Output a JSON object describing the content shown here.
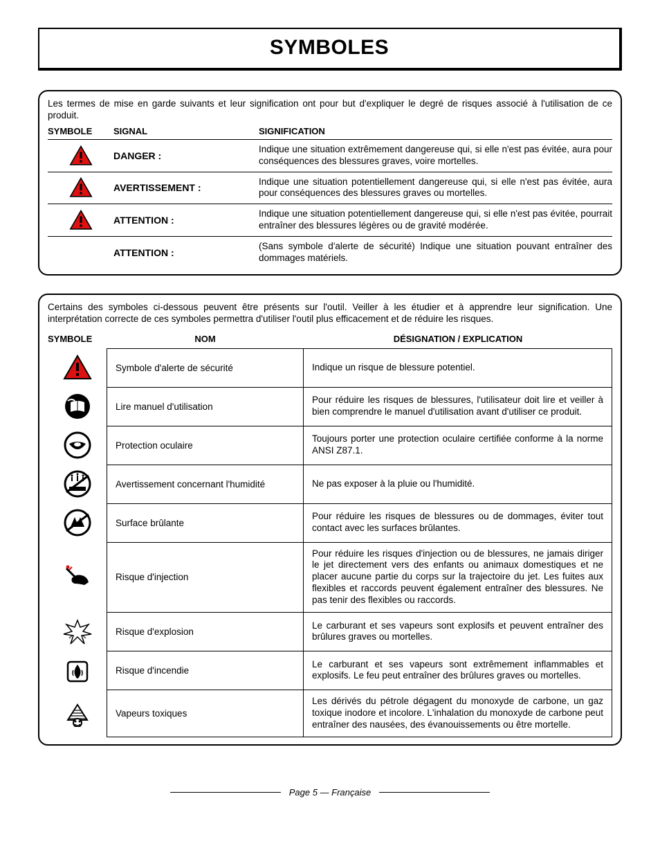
{
  "page_title": "SYMBOLES",
  "signal_intro": "Les termes de mise en garde suivants et leur signification ont pour but d'expliquer le degré de risques associé à l'utilisation de ce produit.",
  "signal_headers": {
    "c1": "SYMBOLE",
    "c2": "SIGNAL",
    "c3": "SIGNIFICATION"
  },
  "signals": [
    {
      "has_icon": true,
      "signal": "DANGER :",
      "meaning": "Indique une situation extrêmement dangereuse qui, si elle n'est pas évitée, aura pour conséquences des blessures graves, voire mortelles."
    },
    {
      "has_icon": true,
      "signal": "AVERTISSEMENT :",
      "meaning": "Indique une situation potentiellement dangereuse qui, si elle n'est pas évitée, aura pour conséquences des blessures graves ou mortelles."
    },
    {
      "has_icon": true,
      "signal": "ATTENTION :",
      "meaning": "Indique une situation potentiellement dangereuse qui, si elle n'est pas évitée, pourrait entraîner des blessures légères ou de gravité modérée."
    },
    {
      "has_icon": false,
      "signal": "ATTENTION :",
      "meaning": "(Sans symbole d'alerte de sécurité) Indique une situation pouvant entraîner des dommages matériels."
    }
  ],
  "symbols_intro": "Certains des symboles ci-dessous peuvent être présents sur l'outil. Veiller à les étudier et à apprendre leur signification. Une interprétation correcte de ces symboles permettra d'utiliser l'outil plus efficacement et de réduire les risques.",
  "symbol_headers": {
    "s1": "SYMBOLE",
    "s2": "NOM",
    "s3": "DÉSIGNATION / EXPLICATION"
  },
  "symbols": [
    {
      "icon": "alert-triangle",
      "name": "Symbole d'alerte de sécurité",
      "desc": "Indique un risque de blessure potentiel."
    },
    {
      "icon": "read-manual",
      "name": "Lire manuel d'utilisation",
      "desc": "Pour réduire les risques de blessures, l'utilisateur doit lire et veiller à bien comprendre le manuel d'utilisation avant d'utiliser ce produit."
    },
    {
      "icon": "eye-protection",
      "name": "Protection oculaire",
      "desc": "Toujours porter une protection oculaire certifiée conforme à la norme ANSI Z87.1."
    },
    {
      "icon": "wet-warning",
      "name": "Avertissement concernant l'humidité",
      "desc": "Ne pas exposer à la pluie ou l'humidité."
    },
    {
      "icon": "hot-surface",
      "name": "Surface brûlante",
      "desc": "Pour réduire les risques de blessures ou de dommages, éviter tout contact avec les surfaces brûlantes."
    },
    {
      "icon": "injection-risk",
      "name": "Risque d'injection",
      "desc": "Pour réduire les risques d'injection ou de blessures, ne jamais diriger le jet directement vers des enfants ou animaux domestiques et ne placer aucune partie du corps sur la trajectoire du jet. Les fuites aux flexibles et raccords peuvent également entraîner des blessures. Ne pas tenir des flexibles ou raccords."
    },
    {
      "icon": "explosion-risk",
      "name": "Risque d'explosion",
      "desc": "Le carburant et ses vapeurs sont explosifs et peuvent entraîner des brûlures graves ou mortelles."
    },
    {
      "icon": "fire-risk",
      "name": "Risque d'incendie",
      "desc": "Le carburant et ses vapeurs sont extrêmement inflammables et explosifs. Le feu peut entraîner des brûlures graves ou mortelles."
    },
    {
      "icon": "toxic-fumes",
      "name": "Vapeurs toxiques",
      "desc": "Les dérivés du pétrole dégagent du monoxyde de carbone, un gaz toxique inodore et incolore. L'inhalation du monoxyde de carbone peut entraîner des nausées, des évanouissements ou être mortelle."
    }
  ],
  "footer_text": "Page 5  — Française",
  "colors": {
    "alert_red": "#d11",
    "black": "#000",
    "white": "#fff"
  }
}
